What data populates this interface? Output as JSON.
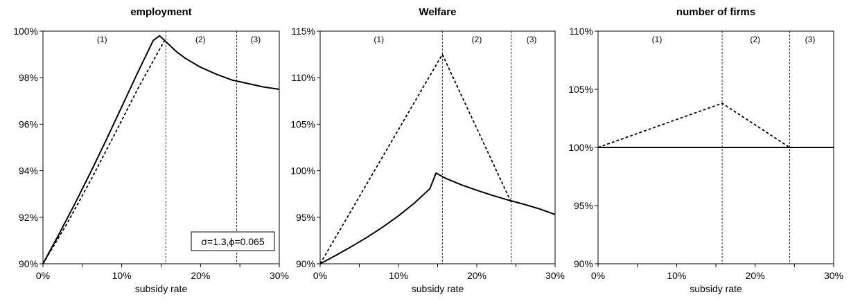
{
  "chart_data": [
    {
      "type": "line",
      "title": "employment",
      "xlabel": "subsidy rate",
      "ylabel": "",
      "xlim": [
        0,
        30
      ],
      "ylim": [
        90,
        100
      ],
      "xticks": [
        0,
        10,
        20,
        30
      ],
      "xtick_labels": [
        "0%",
        "10%",
        "20%",
        "30%"
      ],
      "yticks": [
        90,
        92,
        94,
        96,
        98,
        100
      ],
      "ytick_labels": [
        "90%",
        "92%",
        "94%",
        "96%",
        "98%",
        "100%"
      ],
      "grid": false,
      "legend": "none",
      "regions": [
        {
          "label": "(1)",
          "x": 7.5
        },
        {
          "label": "(2)",
          "x": 20
        },
        {
          "label": "(3)",
          "x": 27
        }
      ],
      "boundaries": [
        15.6,
        24.6
      ],
      "annotation": "σ=1.3,ϕ=0.065",
      "series": [
        {
          "style": "solid",
          "x": [
            0,
            2,
            4,
            6,
            8,
            10,
            12,
            14,
            14.8,
            15.6,
            17,
            18,
            20,
            22,
            24,
            26,
            28,
            30
          ],
          "y": [
            90,
            91.25,
            92.55,
            93.9,
            95.3,
            96.75,
            98.2,
            99.6,
            99.8,
            99.55,
            99.1,
            98.85,
            98.45,
            98.15,
            97.9,
            97.75,
            97.6,
            97.5
          ]
        },
        {
          "style": "dashed",
          "x": [
            0,
            3,
            6,
            9,
            12,
            15.6
          ],
          "y": [
            90,
            91.7,
            93.55,
            95.5,
            97.5,
            99.7
          ]
        }
      ]
    },
    {
      "type": "line",
      "title": "Welfare",
      "xlabel": "subsidy rate",
      "ylabel": "",
      "xlim": [
        0,
        30
      ],
      "ylim": [
        90,
        115
      ],
      "xticks": [
        0,
        10,
        20,
        30
      ],
      "xtick_labels": [
        "0%",
        "10%",
        "20%",
        "30%"
      ],
      "yticks": [
        90,
        95,
        100,
        105,
        110,
        115
      ],
      "ytick_labels": [
        "90%",
        "95%",
        "100%",
        "105%",
        "110%",
        "115%"
      ],
      "grid": false,
      "legend": "none",
      "regions": [
        {
          "label": "(1)",
          "x": 7.5
        },
        {
          "label": "(2)",
          "x": 20
        },
        {
          "label": "(3)",
          "x": 27
        }
      ],
      "boundaries": [
        15.6,
        24.4
      ],
      "series": [
        {
          "style": "solid",
          "x": [
            0,
            2,
            4,
            6,
            8,
            10,
            12,
            14,
            14.8,
            16,
            18,
            20,
            22,
            24,
            26,
            28,
            30
          ],
          "y": [
            90,
            90.9,
            91.85,
            92.85,
            93.95,
            95.15,
            96.5,
            98.05,
            99.75,
            99.2,
            98.5,
            97.9,
            97.35,
            96.85,
            96.4,
            95.9,
            95.3
          ]
        },
        {
          "style": "dashed",
          "x": [
            0,
            15.6,
            24.4
          ],
          "y": [
            90,
            112.5,
            96.6
          ]
        }
      ]
    },
    {
      "type": "line",
      "title": "number of firms",
      "xlabel": "subsidy rate",
      "ylabel": "",
      "xlim": [
        0,
        30
      ],
      "ylim": [
        90,
        110
      ],
      "xticks": [
        0,
        10,
        20,
        30
      ],
      "xtick_labels": [
        "0%",
        "10%",
        "20%",
        "30%"
      ],
      "yticks": [
        90,
        95,
        100,
        105,
        110
      ],
      "ytick_labels": [
        "90%",
        "95%",
        "100%",
        "105%",
        "110%"
      ],
      "grid": false,
      "legend": "none",
      "regions": [
        {
          "label": "(1)",
          "x": 7.5
        },
        {
          "label": "(2)",
          "x": 20
        },
        {
          "label": "(3)",
          "x": 27
        }
      ],
      "boundaries": [
        15.8,
        24.4
      ],
      "series": [
        {
          "style": "solid",
          "x": [
            0,
            30
          ],
          "y": [
            100,
            100
          ]
        },
        {
          "style": "dashed",
          "x": [
            0,
            15.8,
            24.4,
            30
          ],
          "y": [
            100,
            103.8,
            100,
            100
          ]
        }
      ]
    }
  ]
}
